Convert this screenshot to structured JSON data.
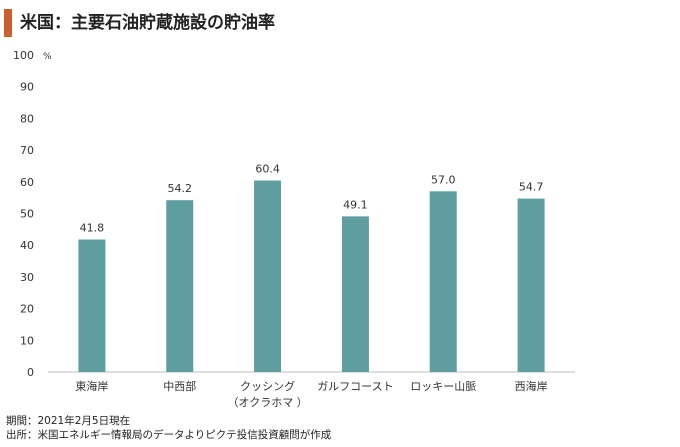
{
  "header": {
    "title": "米国：主要石油貯蔵施設の貯油率",
    "accent_color": "#c8612d"
  },
  "footnotes": {
    "period": "期間：2021年2月5日現在",
    "source": "出所：米国エネルギー情報局のデータよりピクテ投信投資顧問が作成"
  },
  "chart_data": {
    "type": "bar",
    "categories": [
      "東海岸",
      "中西部",
      "クッシング\n（オクラホマ ）",
      "ガルフコースト",
      "ロッキー山脈",
      "西海岸"
    ],
    "values": [
      41.8,
      54.2,
      60.4,
      49.1,
      57.0,
      54.7
    ],
    "value_labels": [
      "41.8",
      "54.2",
      "60.4",
      "49.1",
      "57.0",
      "54.7"
    ],
    "yunit": "%",
    "ylim": [
      0,
      100
    ],
    "yticks": [
      0,
      10,
      20,
      30,
      40,
      50,
      60,
      70,
      80,
      90,
      100
    ],
    "bar_color": "#5f9ea0",
    "grid": false
  }
}
